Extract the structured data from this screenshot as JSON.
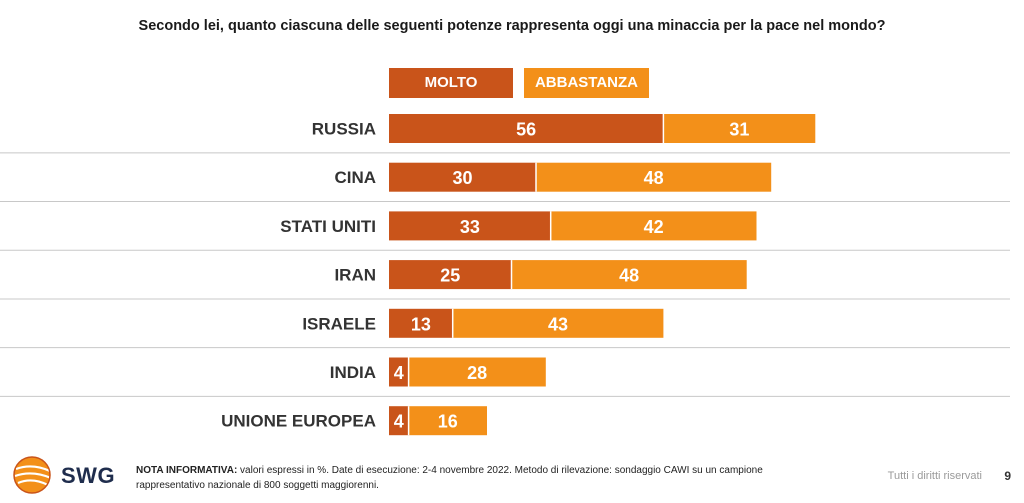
{
  "title": "Secondo lei, quanto ciascuna delle seguenti potenze rappresenta oggi una minaccia per la pace nel mondo?",
  "legend": {
    "molto": "MOLTO",
    "abbastanza": "ABBASTANZA"
  },
  "colors": {
    "molto": "#C9541A",
    "abbastanza": "#F39019",
    "separator": "#c8c8c8"
  },
  "chart_data": {
    "type": "bar",
    "orientation": "horizontal",
    "stacked": true,
    "categories": [
      "RUSSIA",
      "CINA",
      "STATI UNITI",
      "IRAN",
      "ISRAELE",
      "INDIA",
      "UNIONE EUROPEA"
    ],
    "series": [
      {
        "name": "MOLTO",
        "values": [
          56,
          30,
          33,
          25,
          13,
          4,
          4
        ]
      },
      {
        "name": "ABBASTANZA",
        "values": [
          31,
          48,
          42,
          48,
          43,
          28,
          16
        ]
      }
    ],
    "data_labels": true,
    "legend_position": "top"
  },
  "footer": {
    "note_label": "NOTA INFORMATIVA:",
    "note_text": " valori espressi in %. Date di esecuzione: 2-4 novembre 2022. Metodo di rilevazione: sondaggio CAWI su un campione rappresentativo nazionale di 800 soggetti maggiorenni.",
    "rights": "Tutti i diritti riservati",
    "page_number": "9",
    "logo_text": "SWG"
  }
}
